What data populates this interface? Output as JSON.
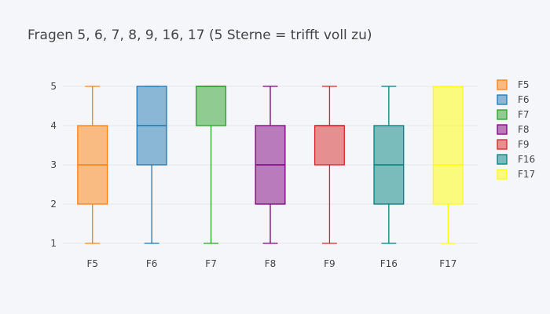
{
  "chart_data": {
    "type": "box",
    "title": "Fragen 5, 6, 7, 8, 9, 16, 17 (5 Sterne = trifft voll zu)",
    "xlabel": "",
    "ylabel": "",
    "ylim": [
      0.8,
      5.2
    ],
    "yticks": [
      "1",
      "2",
      "3",
      "4",
      "5"
    ],
    "grid": true,
    "legend_position": "right",
    "series": [
      {
        "name": "F5",
        "category": "F5",
        "min": 1,
        "q1": 2,
        "median": 3,
        "q3": 4,
        "max": 5,
        "color": "#ff7f0e"
      },
      {
        "name": "F6",
        "category": "F6",
        "min": 1,
        "q1": 3,
        "median": 4,
        "q3": 5,
        "max": 5,
        "color": "#1f77b4"
      },
      {
        "name": "F7",
        "category": "F7",
        "min": 1,
        "q1": 4,
        "median": 5,
        "q3": 5,
        "max": 5,
        "color": "#2ca02c"
      },
      {
        "name": "F8",
        "category": "F8",
        "min": 1,
        "q1": 2,
        "median": 3,
        "q3": 4,
        "max": 5,
        "color": "#800080"
      },
      {
        "name": "F9",
        "category": "F9",
        "min": 1,
        "q1": 3,
        "median": 4,
        "q3": 4,
        "max": 5,
        "color": "#d62728"
      },
      {
        "name": "F16",
        "category": "F16",
        "min": 1,
        "q1": 2,
        "median": 3,
        "q3": 4,
        "max": 5,
        "color": "#008080"
      },
      {
        "name": "F17",
        "category": "F17",
        "min": 1,
        "q1": 2,
        "median": 3,
        "q3": 5,
        "max": 5,
        "color": "#ffff00"
      }
    ]
  }
}
